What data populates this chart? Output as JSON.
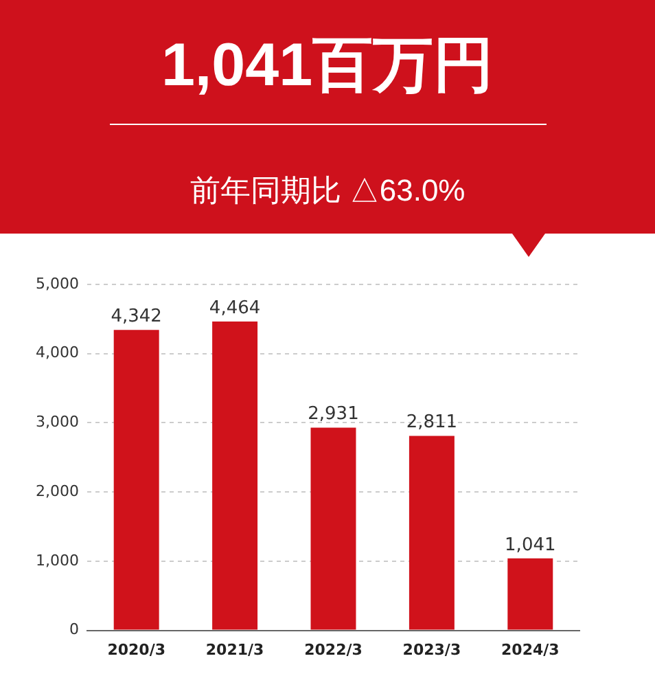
{
  "chart_data": {
    "type": "bar",
    "title": "1,041百万円",
    "subtitle": "前年同期比 △63.0%",
    "categories": [
      "2020/3",
      "2021/3",
      "2022/3",
      "2023/3",
      "2024/3"
    ],
    "values": [
      4342,
      4464,
      2931,
      2811,
      1041
    ],
    "color": "#d0121b",
    "value_labels": [
      "4,342",
      "4,464",
      "2,931",
      "2,811",
      "1,041"
    ],
    "ylim": [
      0,
      5000
    ],
    "yticks": [
      0,
      {
        "value": 1000,
        "label": "1,000"
      },
      {
        "value": 2000,
        "label": "2,000"
      },
      {
        "value": 3000,
        "label": "3,000"
      },
      {
        "value": 4000,
        "label": "4,000"
      },
      {
        "value": 5000,
        "label": "5,000"
      }
    ],
    "grid": "y"
  }
}
